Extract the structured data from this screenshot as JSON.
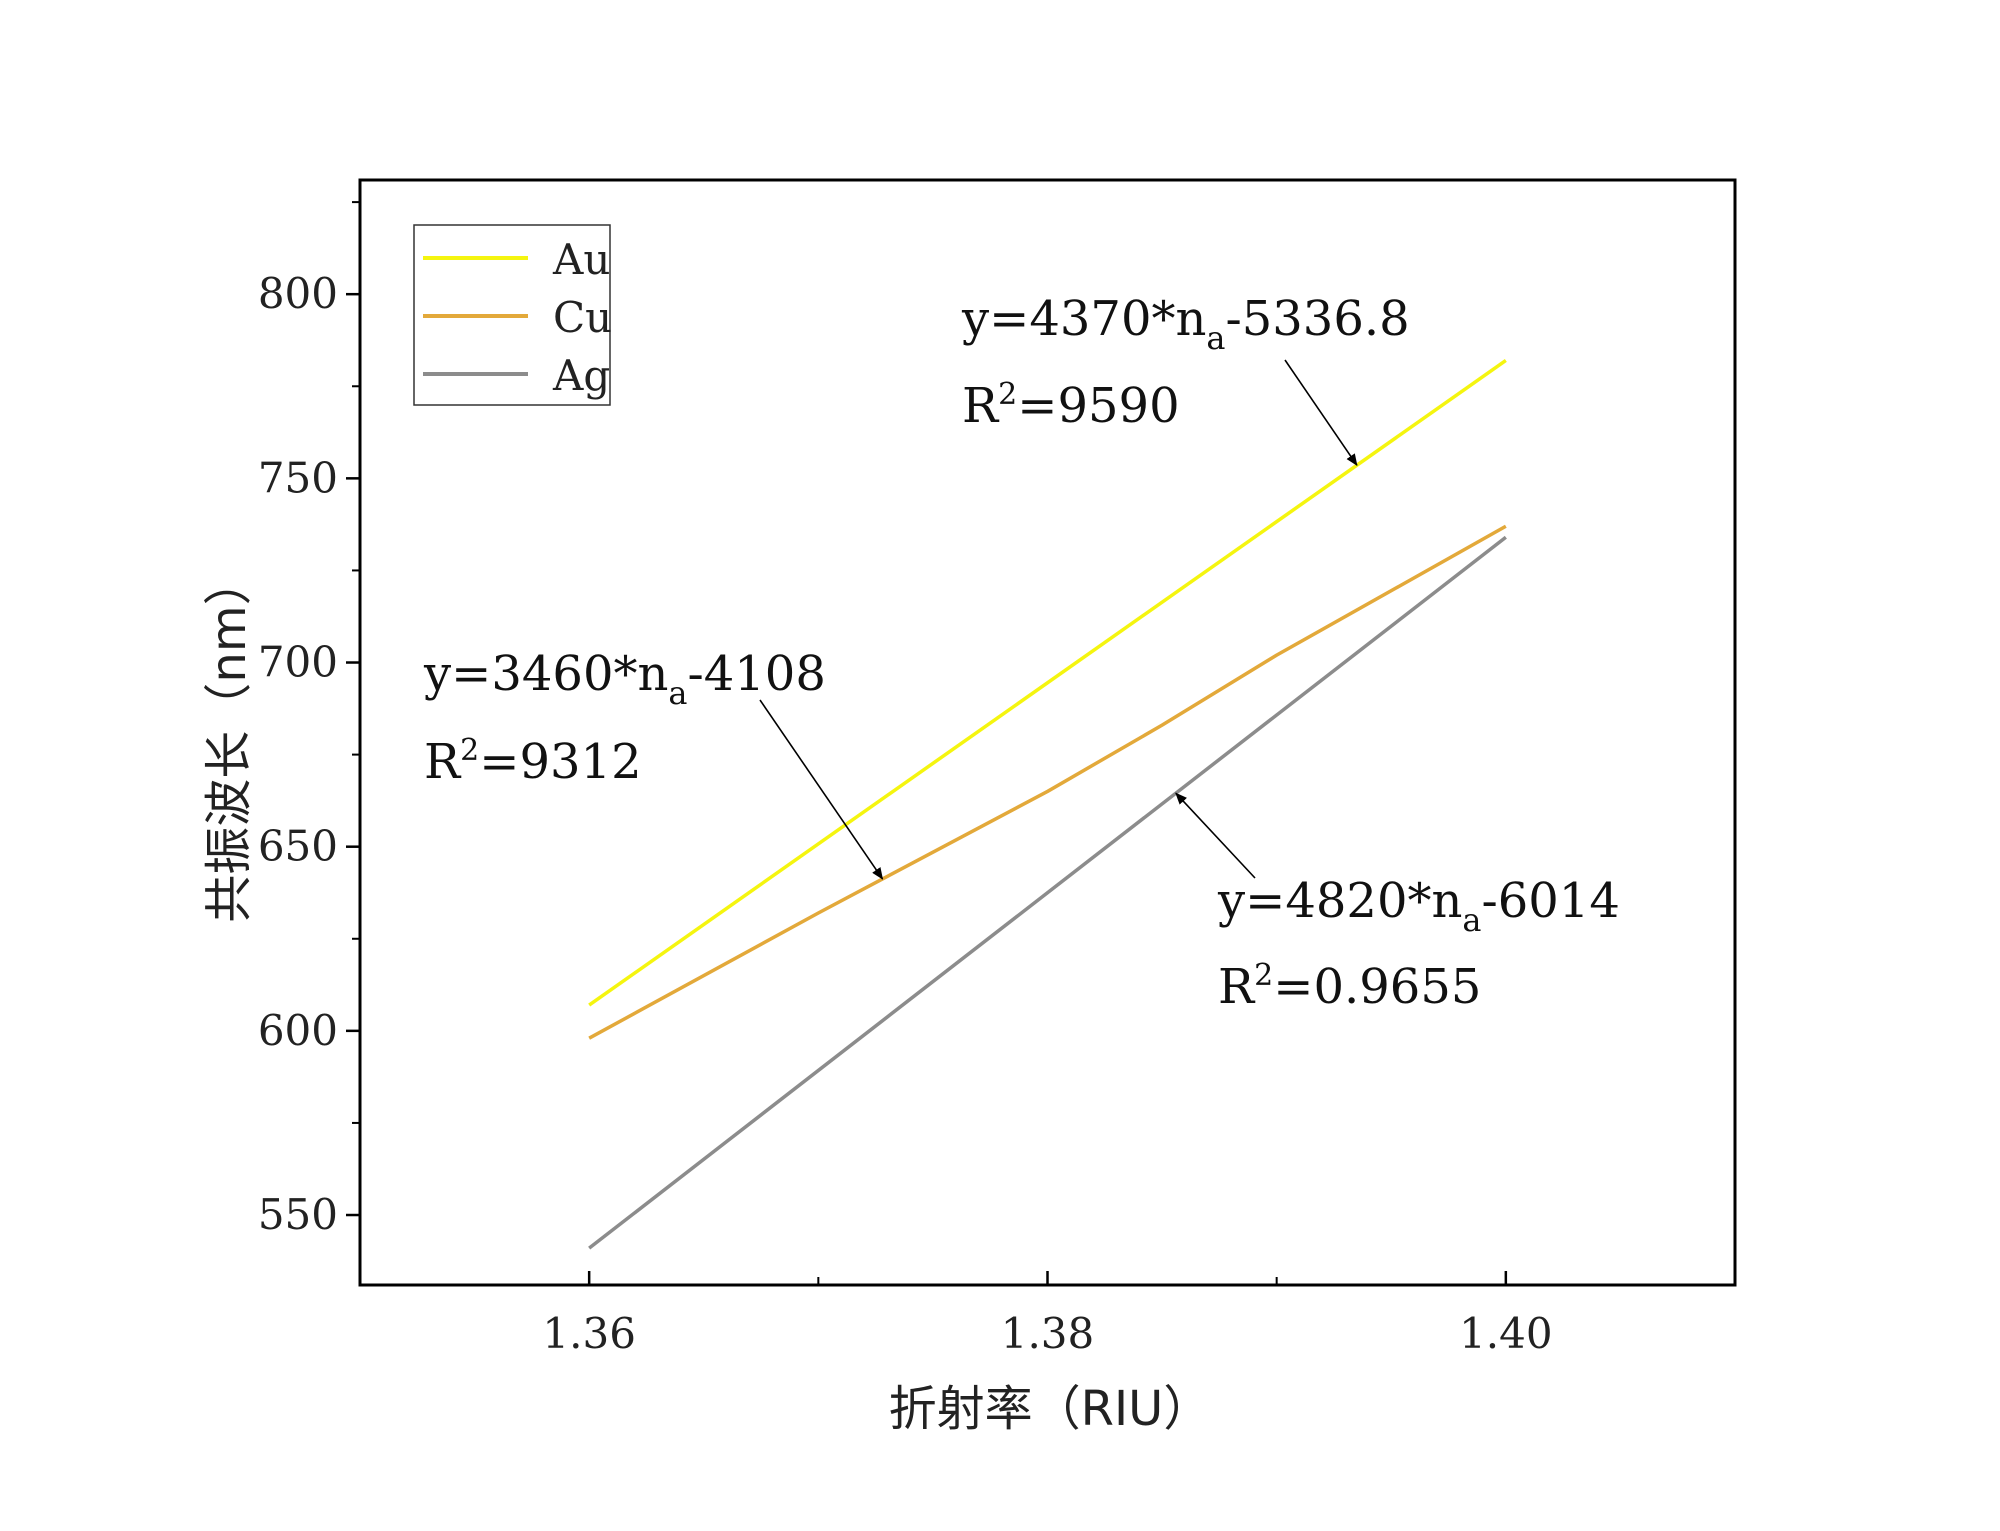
{
  "chart_data": {
    "type": "line",
    "xlabel": "折射率（RIU）",
    "ylabel": "共振波长（nm）",
    "xlim": [
      1.35,
      1.41
    ],
    "ylim": [
      531,
      831
    ],
    "x_ticks": [
      1.36,
      1.38,
      1.4
    ],
    "x_tick_labels": [
      "1.36",
      "1.38",
      "1.40"
    ],
    "y_ticks": [
      550,
      600,
      650,
      700,
      750,
      800
    ],
    "y_tick_labels": [
      "550",
      "600",
      "650",
      "700",
      "750",
      "800"
    ],
    "grid": false,
    "legend_position": "top-left",
    "series": [
      {
        "name": "Au",
        "color": "#f5f50f",
        "x": [
          1.36,
          1.4
        ],
        "y": [
          607,
          782
        ]
      },
      {
        "name": "Cu",
        "color": "#e3a93a",
        "x": [
          1.36,
          1.37,
          1.38,
          1.385,
          1.39,
          1.4
        ],
        "y": [
          598,
          632,
          665,
          683,
          702,
          737
        ]
      },
      {
        "name": "Ag",
        "color": "#8c8c8c",
        "x": [
          1.36,
          1.4
        ],
        "y": [
          541,
          734
        ]
      }
    ],
    "annotations": [
      {
        "id": "au",
        "eq_prefix": "y=4370*n",
        "eq_sub": "a",
        "eq_suffix": "-5336.8",
        "r2_value": "=9590",
        "arrow_from": [
          1.3935,
          774
        ],
        "arrow_to": [
          1.3935,
          751
        ]
      },
      {
        "id": "cu",
        "eq_prefix": "y=3460*n",
        "eq_sub": "a",
        "eq_suffix": "-4108",
        "r2_value": "=9312",
        "arrow_from": [
          1.3728,
          680
        ],
        "arrow_to": [
          1.3728,
          638
        ]
      },
      {
        "id": "ag",
        "eq_prefix": "y=4820*n",
        "eq_sub": "a",
        "eq_suffix": "-6014",
        "r2_value": "=0.9655",
        "arrow_from": [
          1.3856,
          632
        ],
        "arrow_to": [
          1.3856,
          664
        ]
      }
    ],
    "r2_label": "R",
    "r2_sup": "2"
  }
}
